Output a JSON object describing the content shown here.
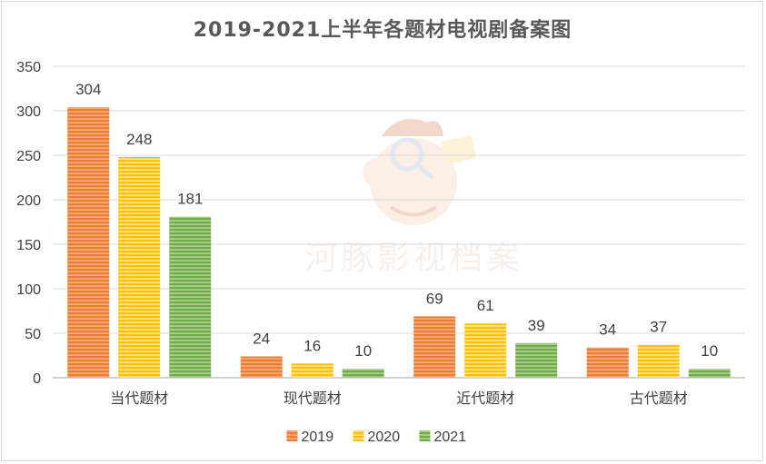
{
  "chart_data": {
    "type": "bar",
    "title": "2019-2021上半年各题材电视剧备案图",
    "categories": [
      "当代题材",
      "现代题材",
      "近代题材",
      "古代题材"
    ],
    "series": [
      {
        "name": "2019",
        "color": "#ed7d31",
        "values": [
          304,
          24,
          69,
          34
        ]
      },
      {
        "name": "2020",
        "color": "#ffc000",
        "values": [
          248,
          16,
          61,
          37
        ]
      },
      {
        "name": "2021",
        "color": "#70ad47",
        "values": [
          181,
          10,
          39,
          10
        ]
      }
    ],
    "ylim": [
      0,
      350
    ],
    "yticks": [
      0,
      50,
      100,
      150,
      200,
      250,
      300,
      350
    ],
    "xlabel": "",
    "ylabel": "",
    "grid": true,
    "legend_position": "bottom"
  },
  "watermark": {
    "text": "河豚影视档案",
    "logo_icon": "pufferfish-detective-icon"
  }
}
